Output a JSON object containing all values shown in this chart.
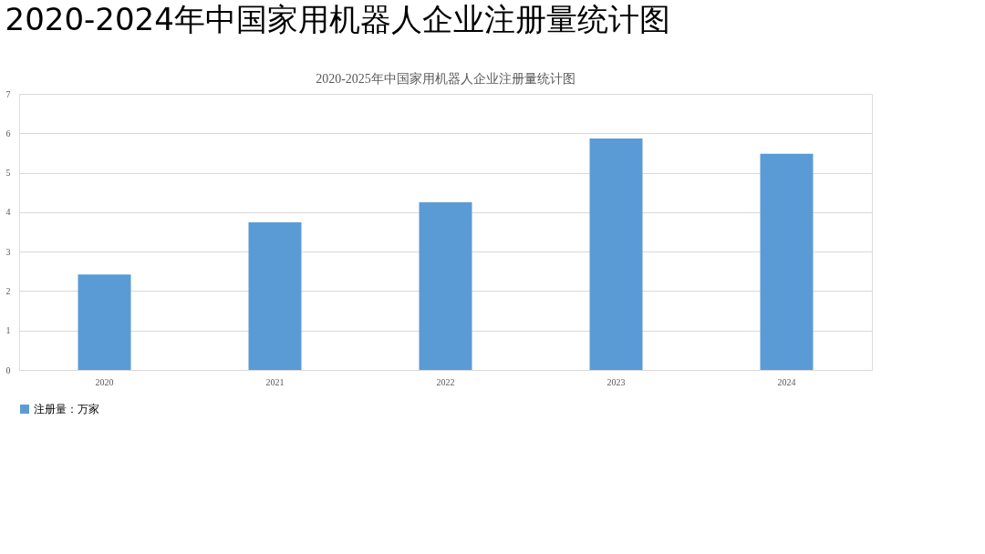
{
  "chart_data": {
    "type": "bar",
    "title": "2020-2024年中国家用机器人企业注册量统计图",
    "subtitle": "2020-2025年中国家用机器人企业注册量统计图",
    "categories": [
      "2020",
      "2021",
      "2022",
      "2023",
      "2024"
    ],
    "series": [
      {
        "name": "注册量：万家",
        "color": "#5b9bd5",
        "values": [
          2.42,
          3.74,
          4.25,
          5.87,
          5.48
        ]
      }
    ],
    "ylim": [
      0,
      7
    ],
    "yticks": [
      0,
      1,
      2,
      3,
      4,
      5,
      6,
      7
    ],
    "grid": "y",
    "legend": "bottom"
  }
}
